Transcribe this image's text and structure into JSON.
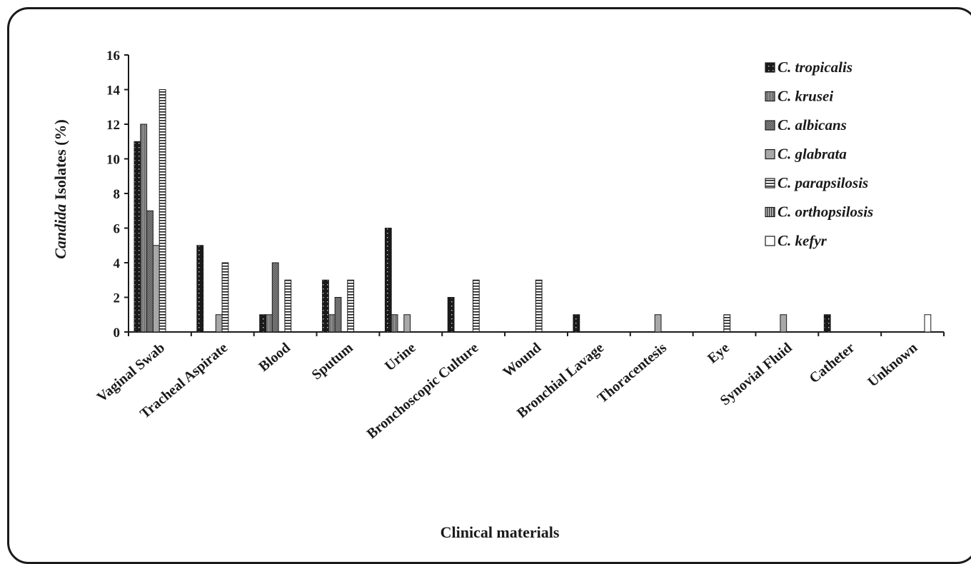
{
  "chart_data": {
    "type": "bar",
    "xlabel": "Clinical materials",
    "ylabel_italic": "Candida",
    "ylabel_rest": " Isolates (%)",
    "ylim": [
      0,
      16
    ],
    "yticks": [
      "0",
      "2",
      "4",
      "6",
      "8",
      "10",
      "12",
      "14",
      "16"
    ],
    "categories": [
      "Vaginal Swab",
      "Tracheal Aspirate",
      "Blood",
      "Sputum",
      "Urine",
      "Bronchoscopic Culture",
      "Wound",
      "Bronchial Lavage",
      "Thoracentesis",
      "Eye",
      "Synovial Fluid",
      "Catheter",
      "Unknown"
    ],
    "series": [
      {
        "name": "C. tropicalis",
        "values": [
          11,
          5,
          1,
          3,
          6,
          2,
          0,
          1,
          0,
          0,
          0,
          1,
          0
        ]
      },
      {
        "name": "C. krusei",
        "values": [
          12,
          0,
          1,
          1,
          1,
          0,
          0,
          0,
          0,
          0,
          0,
          0,
          0
        ]
      },
      {
        "name": "C. albicans",
        "values": [
          7,
          0,
          4,
          2,
          0,
          0,
          0,
          0,
          0,
          0,
          0,
          0,
          0
        ]
      },
      {
        "name": "C. glabrata",
        "values": [
          5,
          1,
          0,
          0,
          1,
          0,
          0,
          0,
          1,
          0,
          1,
          0,
          0
        ]
      },
      {
        "name": "C. parapsilosis",
        "values": [
          14,
          4,
          3,
          3,
          0,
          3,
          3,
          0,
          0,
          1,
          0,
          0,
          0
        ]
      },
      {
        "name": "C. orthopsilosis",
        "values": [
          0,
          0,
          0,
          0,
          0,
          0,
          0,
          0,
          0,
          0,
          0,
          0,
          0
        ]
      },
      {
        "name": "C. kefyr",
        "values": [
          0,
          0,
          0,
          0,
          0,
          0,
          0,
          0,
          0,
          0,
          0,
          0,
          1
        ]
      }
    ],
    "legend_position": "top-right",
    "grid": false
  }
}
